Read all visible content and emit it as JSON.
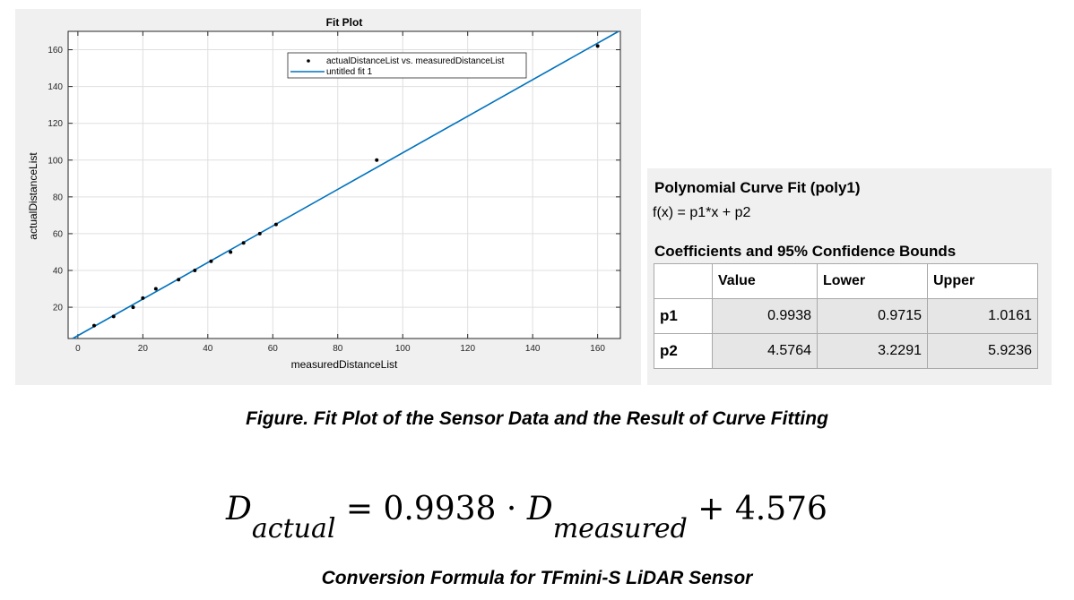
{
  "chart_data": {
    "type": "scatter",
    "title": "Fit Plot",
    "xlabel": "measuredDistanceList",
    "ylabel": "actualDistanceList",
    "xlim": [
      -3,
      167
    ],
    "ylim": [
      3,
      170
    ],
    "xticks": [
      0,
      20,
      40,
      60,
      80,
      100,
      120,
      140,
      160
    ],
    "yticks": [
      20,
      40,
      60,
      80,
      100,
      120,
      140,
      160
    ],
    "grid": true,
    "legend_position": "top-center",
    "series": [
      {
        "name": "actualDistanceList vs. measuredDistanceList",
        "kind": "points",
        "x": [
          5,
          11,
          17,
          20,
          24,
          31,
          36,
          41,
          47,
          51,
          56,
          61,
          92,
          160
        ],
        "y": [
          10,
          15,
          20,
          25,
          30,
          35,
          40,
          45,
          50,
          55,
          60,
          65,
          100,
          162
        ]
      },
      {
        "name": "untitled fit 1",
        "kind": "line",
        "slope": 0.9938,
        "intercept": 4.5764
      }
    ],
    "colors": {
      "points": "#000000",
      "fit_line": "#0072bd"
    }
  },
  "fit": {
    "title": "Polynomial Curve Fit (poly1)",
    "formula": "f(x) = p1*x + p2",
    "ci_title": "Coefficients and 95% Confidence Bounds",
    "headers": [
      "",
      "Value",
      "Lower",
      "Upper"
    ],
    "rows": [
      {
        "name": "p1",
        "value": "0.9938",
        "lower": "0.9715",
        "upper": "1.0161"
      },
      {
        "name": "p2",
        "value": "4.5764",
        "lower": "3.2291",
        "upper": "5.9236"
      }
    ]
  },
  "figure_caption": "Figure. Fit Plot of the Sensor Data and the Result of Curve Fitting",
  "equation": {
    "lhs": "D",
    "lhs_sub": "actual",
    "equals": "=",
    "coefficient": "0.9938",
    "dot": "·",
    "var": "D",
    "var_sub": "measured",
    "plus": "+",
    "constant": "4.576"
  },
  "formula_caption": "Conversion Formula for TFmini-S LiDAR Sensor"
}
